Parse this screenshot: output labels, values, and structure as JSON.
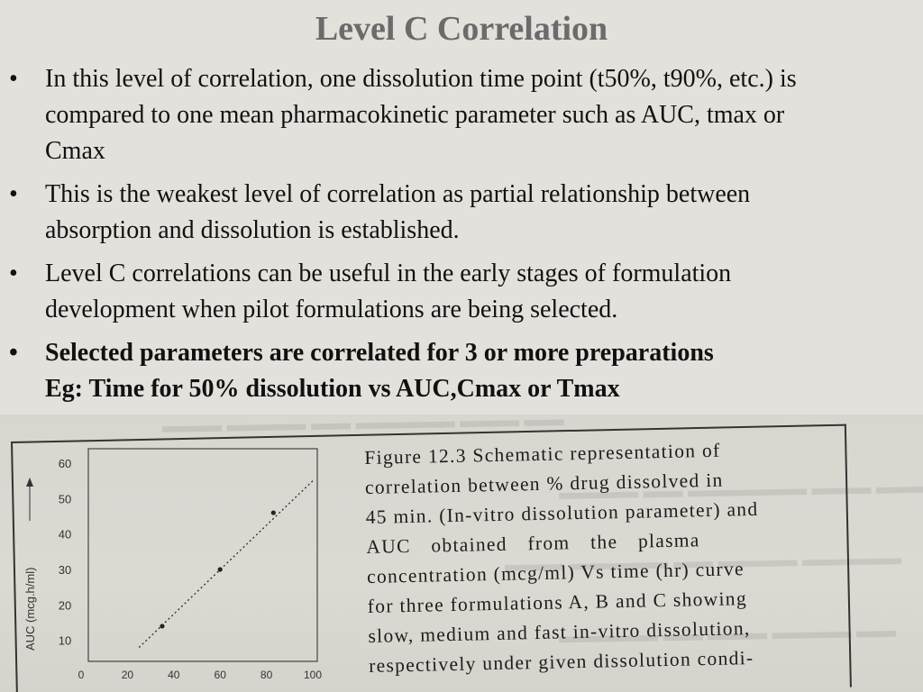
{
  "slide": {
    "title": "Level C Correlation",
    "bullets": [
      {
        "lines": [
          "In this level of correlation, one dissolution time point (t50%, t90%, etc.) is",
          "compared to one mean pharmacokinetic parameter such as AUC, tmax or",
          "Cmax"
        ],
        "bold": false
      },
      {
        "lines": [
          "This is the weakest level of correlation as partial relationship between",
          "absorption and dissolution is established."
        ],
        "bold": false
      },
      {
        "lines": [
          "Level C correlations can be useful in the early stages of formulation",
          "development when pilot formulations are being selected."
        ],
        "bold": false
      },
      {
        "lines": [
          "Selected parameters are correlated for 3 or more preparations",
          "Eg: Time for 50% dissolution vs AUC,Cmax or Tmax"
        ],
        "bold": true
      }
    ]
  },
  "figure": {
    "caption_lines": [
      "Figure 12.3 Schematic representation of",
      "correlation between % drug dissolved in",
      "45 min. (In-vitro dissolution parameter) and",
      "AUC obtained from the plasma",
      "concentration (mcg/ml) Vs time (hr) curve",
      "for three formulations A, B and C showing",
      "slow, medium and fast in-vitro dissolution,",
      "respectively under given dissolution condi-"
    ]
  },
  "chart_data": {
    "type": "scatter",
    "ylabel": "AUC (mcg.h/ml)",
    "xlabel": "",
    "x_ticks": [
      0,
      20,
      40,
      60,
      80,
      100
    ],
    "y_ticks": [
      10,
      20,
      30,
      40,
      50,
      60
    ],
    "xlim": [
      0,
      100
    ],
    "ylim": [
      0,
      60
    ],
    "points": [
      {
        "x": 35,
        "y": 14
      },
      {
        "x": 60,
        "y": 30
      },
      {
        "x": 83,
        "y": 46
      }
    ],
    "trendline": {
      "x": [
        25,
        100
      ],
      "y": [
        8,
        55
      ]
    }
  },
  "colors": {
    "ink": "#1c1c1c",
    "title": "#6b6b6b",
    "background": "#e3e1dc",
    "paper": "#d9d6d0"
  }
}
